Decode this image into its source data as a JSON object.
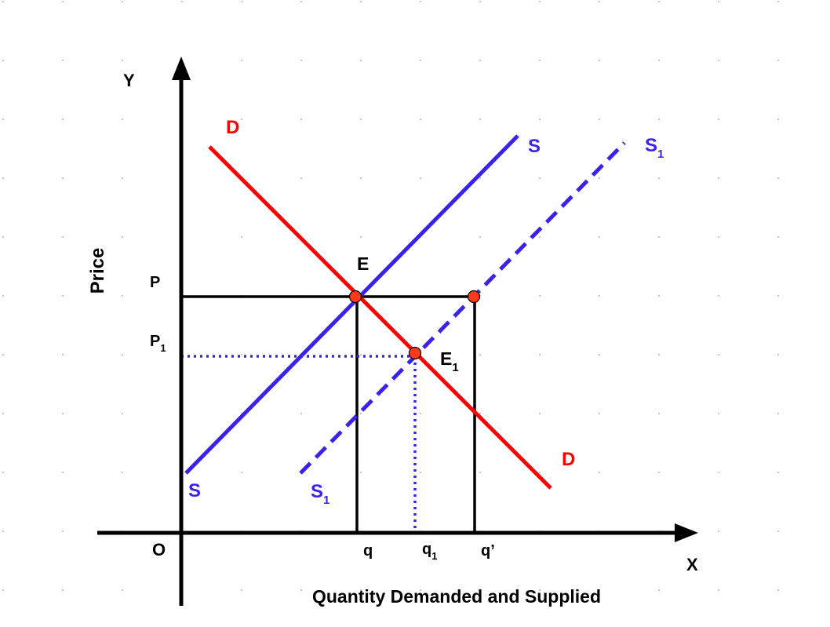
{
  "colors": {
    "demand": "#ff0000",
    "supply": "#3a22ee",
    "axis": "#000000",
    "point_fill": "#ff3a1a",
    "grid_dot": "#9a9a9a"
  },
  "axes": {
    "y_label": "Y",
    "x_label": "X",
    "origin_label": "O",
    "y_title": "Price",
    "x_title": "Quantity Demanded and Supplied"
  },
  "curves": {
    "demand": {
      "label_top": "D",
      "label_bottom": "D"
    },
    "supply": {
      "label_top": "S",
      "label_bottom": "S"
    },
    "supply_shifted": {
      "label_base": "S",
      "label_sub": "1",
      "style": "dashed"
    }
  },
  "points": {
    "E": {
      "label": "E"
    },
    "E1": {
      "label_base": "E",
      "label_sub": "1"
    }
  },
  "price_labels": {
    "P": "P",
    "P1_base": "P",
    "P1_sub": "1"
  },
  "quantity_labels": {
    "q": "q",
    "q1_base": "q",
    "q1_sub": "1",
    "q_prime": "q’"
  }
}
